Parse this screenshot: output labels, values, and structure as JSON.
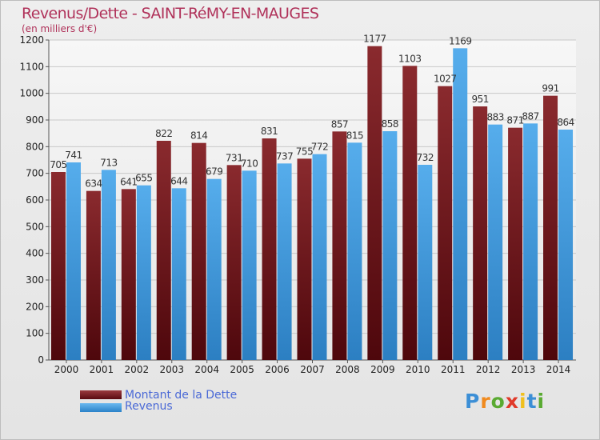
{
  "header": {
    "title": "Revenus/Dette - SAINT-RéMY-EN-MAUGES",
    "subtitle": "(en milliers d'€)"
  },
  "chart_data": {
    "type": "bar",
    "categories": [
      "2000",
      "2001",
      "2002",
      "2003",
      "2004",
      "2005",
      "2006",
      "2007",
      "2008",
      "2009",
      "2010",
      "2011",
      "2012",
      "2013",
      "2014"
    ],
    "series": [
      {
        "name": "Montant de la Dette",
        "color": "#7a1e22",
        "values": [
          705,
          634,
          641,
          822,
          814,
          731,
          831,
          755,
          857,
          1177,
          1103,
          1027,
          951,
          871,
          991
        ],
        "labels": [
          "705",
          "634",
          "641",
          "822",
          "814",
          "731",
          "831",
          "755",
          "857",
          "1177",
          "1103",
          "1027",
          "951",
          "871",
          "991"
        ]
      },
      {
        "name": "Revenus",
        "color": "#3d9be0",
        "values": [
          741,
          713,
          655,
          644,
          679,
          710,
          737,
          772,
          815,
          858,
          732,
          1169,
          883,
          887,
          864
        ],
        "labels": [
          "741",
          "713",
          "655",
          "644",
          "679",
          "710",
          "737",
          "772",
          "815",
          "858",
          "732",
          "1169",
          "883",
          "887",
          "864"
        ]
      }
    ],
    "ylim": [
      0,
      1200
    ],
    "yticks": [
      0,
      100,
      200,
      300,
      400,
      500,
      600,
      700,
      800,
      900,
      1000,
      1100,
      1200
    ],
    "grid": true,
    "legend_placement": "bottom-left"
  },
  "legend": {
    "debt_label": "Montant de la Dette",
    "revenue_label": "Revenus"
  },
  "logo": {
    "letters": [
      "P",
      "r",
      "o",
      "x",
      "i",
      "t",
      "i"
    ],
    "colors": [
      "#3c8fd6",
      "#f08a1e",
      "#5aaa32",
      "#e03a2a",
      "#f0c01e",
      "#3c8fd6",
      "#5aaa32"
    ]
  }
}
